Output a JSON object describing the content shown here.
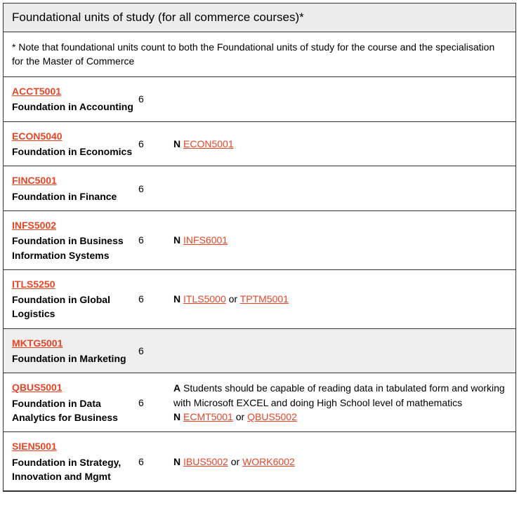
{
  "header": "Foundational units of study (for all commerce courses)*",
  "note": "* Note that foundational units count to both the Foundational units of study for the course and the specialisation for the Master of Commerce",
  "colors": {
    "link": "#e64626",
    "header_bg": "#ececec",
    "highlight_bg": "#efefef",
    "border": "#333333",
    "text": "#000000"
  },
  "units": [
    {
      "code": "ACCT5001",
      "title": "Foundation in Accounting",
      "credit": "6",
      "highlight": false,
      "notes": []
    },
    {
      "code": "ECON5040",
      "title": "Foundation in Economics",
      "credit": "6",
      "highlight": false,
      "notes": [
        {
          "prefix": "N",
          "parts": [
            {
              "type": "link",
              "text": "ECON5001"
            }
          ]
        }
      ]
    },
    {
      "code": "FINC5001",
      "title": "Foundation in Finance",
      "credit": "6",
      "highlight": false,
      "notes": []
    },
    {
      "code": "INFS5002",
      "title": "Foundation in Business Information Systems",
      "credit": "6",
      "highlight": false,
      "notes": [
        {
          "prefix": "N",
          "parts": [
            {
              "type": "link",
              "text": "INFS6001"
            }
          ]
        }
      ]
    },
    {
      "code": "ITLS5250",
      "title": "Foundation in Global Logistics",
      "credit": "6",
      "highlight": false,
      "notes": [
        {
          "prefix": "N",
          "parts": [
            {
              "type": "link",
              "text": "ITLS5000"
            },
            {
              "type": "text",
              "text": " or "
            },
            {
              "type": "link",
              "text": "TPTM5001"
            }
          ]
        }
      ]
    },
    {
      "code": "MKTG5001",
      "title": "Foundation in Marketing",
      "credit": "6",
      "highlight": true,
      "notes": []
    },
    {
      "code": "QBUS5001",
      "title": "Foundation in Data Analytics for Business",
      "credit": "6",
      "highlight": false,
      "notes": [
        {
          "prefix": "A",
          "parts": [
            {
              "type": "text",
              "text": "Students should be capable of reading data in tabulated form and working with Microsoft EXCEL and doing High School level of mathematics"
            }
          ]
        },
        {
          "prefix": "N",
          "parts": [
            {
              "type": "link",
              "text": "ECMT5001"
            },
            {
              "type": "text",
              "text": " or "
            },
            {
              "type": "link",
              "text": "QBUS5002"
            }
          ]
        }
      ]
    },
    {
      "code": "SIEN5001",
      "title": "Foundation in Strategy, Innovation and Mgmt",
      "credit": "6",
      "highlight": false,
      "notes": [
        {
          "prefix": "N",
          "parts": [
            {
              "type": "link",
              "text": "IBUS5002"
            },
            {
              "type": "text",
              "text": " or "
            },
            {
              "type": "link",
              "text": "WORK6002"
            }
          ]
        }
      ]
    }
  ]
}
